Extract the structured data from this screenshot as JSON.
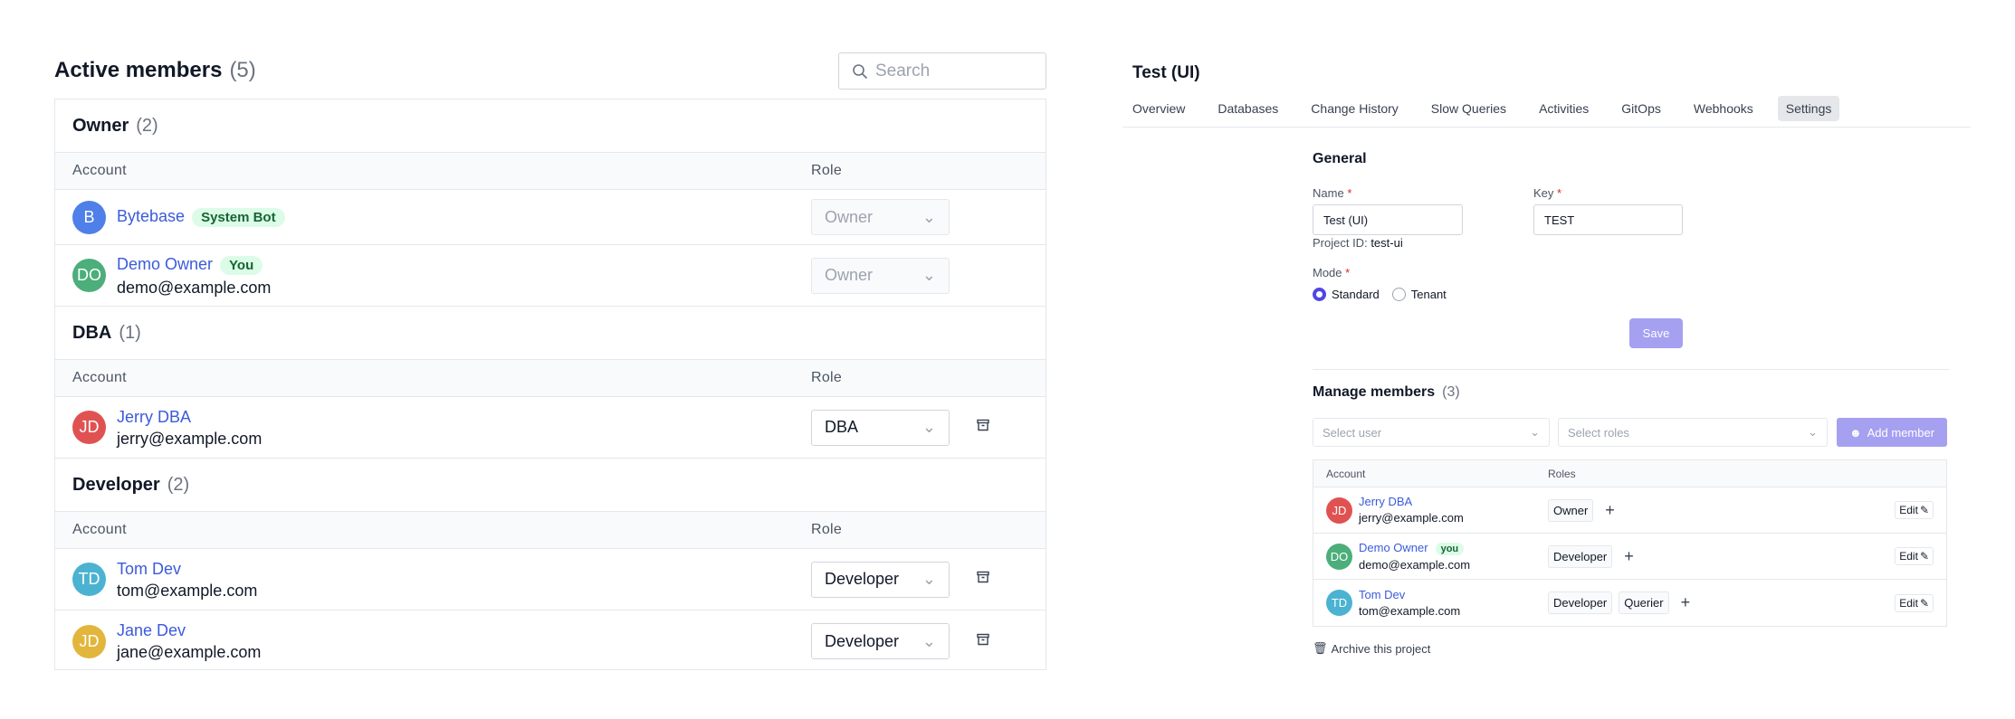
{
  "active_members": {
    "title": "Active members",
    "count": "(5)",
    "search_placeholder": "Search",
    "col_account": "Account",
    "col_role": "Role",
    "groups": [
      {
        "title": "Owner",
        "count": "(2)",
        "members": [
          {
            "initials": "B",
            "name": "Bytebase",
            "badge": "System Bot",
            "email": "",
            "role": "Owner",
            "color": "#4f7fe8",
            "disabled": true
          },
          {
            "initials": "DO",
            "name": "Demo Owner",
            "badge": "You",
            "email": "demo@example.com",
            "role": "Owner",
            "color": "#4cae7a",
            "disabled": true
          }
        ]
      },
      {
        "title": "DBA",
        "count": "(1)",
        "members": [
          {
            "initials": "JD",
            "name": "Jerry DBA",
            "email": "jerry@example.com",
            "role": "DBA",
            "color": "#e05252"
          }
        ]
      },
      {
        "title": "Developer",
        "count": "(2)",
        "members": [
          {
            "initials": "TD",
            "name": "Tom Dev",
            "email": "tom@example.com",
            "role": "Developer",
            "color": "#4bb3d1"
          },
          {
            "initials": "JD",
            "name": "Jane Dev",
            "email": "jane@example.com",
            "role": "Developer",
            "color": "#e2b53c"
          }
        ]
      }
    ]
  },
  "project": {
    "title": "Test (UI)",
    "tabs": [
      "Overview",
      "Databases",
      "Change History",
      "Slow Queries",
      "Activities",
      "GitOps",
      "Webhooks",
      "Settings"
    ],
    "active_tab": "Settings",
    "general": {
      "heading": "General",
      "name_label": "Name",
      "name_value": "Test (UI)",
      "key_label": "Key",
      "key_value": "TEST",
      "project_id_label": "Project ID:",
      "project_id": "test-ui",
      "mode_label": "Mode",
      "modes": [
        "Standard",
        "Tenant"
      ],
      "selected_mode": "Standard",
      "save": "Save"
    },
    "manage": {
      "heading": "Manage members",
      "count": "(3)",
      "select_user": "Select user",
      "select_roles": "Select roles",
      "add_member": "Add member",
      "col_account": "Account",
      "col_roles": "Roles",
      "edit": "Edit",
      "members": [
        {
          "initials": "JD",
          "name": "Jerry DBA",
          "email": "jerry@example.com",
          "roles": [
            "Owner"
          ],
          "color": "#e05252"
        },
        {
          "initials": "DO",
          "name": "Demo Owner",
          "badge": "you",
          "email": "demo@example.com",
          "roles": [
            "Developer"
          ],
          "color": "#4cae7a"
        },
        {
          "initials": "TD",
          "name": "Tom Dev",
          "email": "tom@example.com",
          "roles": [
            "Developer",
            "Querier"
          ],
          "color": "#4bb3d1"
        }
      ]
    },
    "archive": "Archive this project"
  },
  "colors": {
    "accent": "#4f46e5",
    "accent_disabled": "#a5a0f0",
    "link": "#3b5bdb",
    "badge_bg": "#dcfce7"
  }
}
